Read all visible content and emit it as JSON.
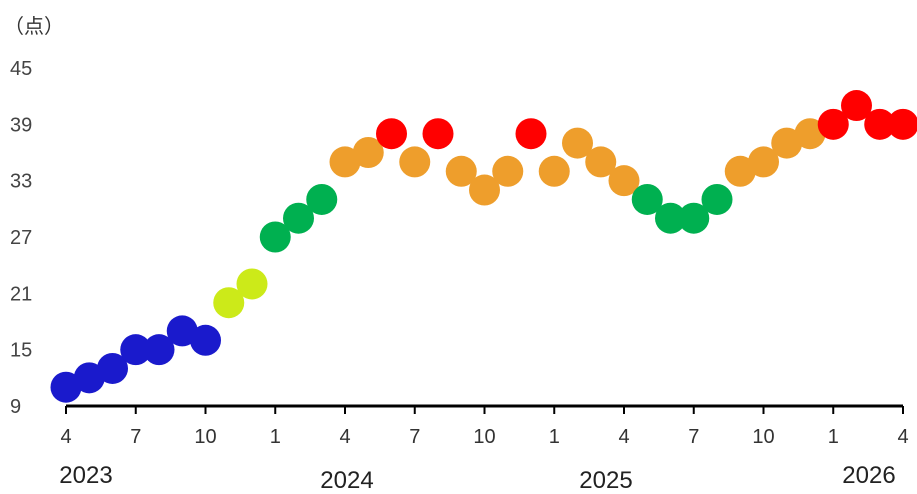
{
  "chart_data": {
    "type": "scatter",
    "y_unit": "（点）",
    "ylim": [
      9,
      45
    ],
    "y_ticks": [
      9,
      15,
      21,
      27,
      33,
      39,
      45
    ],
    "grid": false,
    "x_tick_labels": [
      "4",
      "7",
      "10",
      "1",
      "4",
      "7",
      "10",
      "1",
      "4",
      "7",
      "10",
      "1",
      "4"
    ],
    "year_labels": [
      "2023",
      "2024",
      "2025",
      "2026"
    ],
    "x": [
      "2023-04",
      "2023-05",
      "2023-06",
      "2023-07",
      "2023-08",
      "2023-09",
      "2023-10",
      "2023-11",
      "2023-12",
      "2024-01",
      "2024-02",
      "2024-03",
      "2024-04",
      "2024-05",
      "2024-06",
      "2024-07",
      "2024-08",
      "2024-09",
      "2024-10",
      "2024-11",
      "2024-12",
      "2025-01",
      "2025-02",
      "2025-03",
      "2025-04",
      "2025-05",
      "2025-06",
      "2025-07",
      "2025-08",
      "2025-09",
      "2025-10",
      "2025-11",
      "2025-12",
      "2026-01",
      "2026-02",
      "2026-03",
      "2026-04"
    ],
    "values": [
      11,
      12,
      13,
      15,
      15,
      17,
      16,
      20,
      22,
      27,
      29,
      31,
      35,
      36,
      38,
      35,
      38,
      34,
      32,
      34,
      38,
      34,
      37,
      35,
      33,
      31,
      29,
      29,
      31,
      34,
      35,
      37,
      38,
      39,
      41,
      39,
      39
    ],
    "colors": {
      "blue": "#1a1acc",
      "yellow": "#ccea19",
      "green": "#00b050",
      "orange": "#ee9e2c",
      "red": "#ff0000"
    },
    "point_colors": [
      "blue",
      "blue",
      "blue",
      "blue",
      "blue",
      "blue",
      "blue",
      "yellow",
      "yellow",
      "green",
      "green",
      "green",
      "orange",
      "orange",
      "red",
      "orange",
      "red",
      "orange",
      "orange",
      "orange",
      "red",
      "orange",
      "orange",
      "orange",
      "orange",
      "green",
      "green",
      "green",
      "green",
      "orange",
      "orange",
      "orange",
      "orange",
      "red",
      "red",
      "red",
      "red"
    ]
  }
}
